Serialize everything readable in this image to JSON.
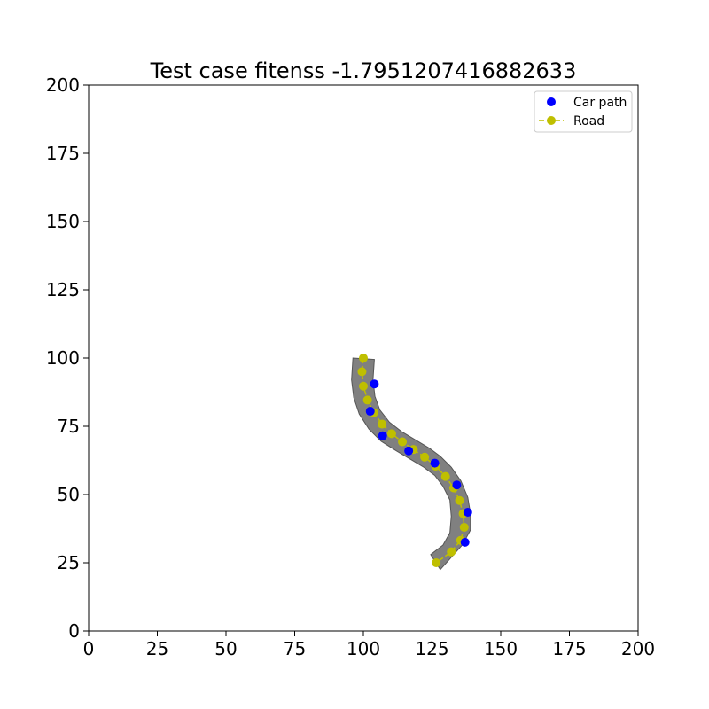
{
  "chart_data": {
    "type": "scatter",
    "title": "Test case fitenss -1.7951207416882633",
    "xlabel": "",
    "ylabel": "",
    "xlim": [
      0,
      200
    ],
    "ylim": [
      0,
      200
    ],
    "xticks": [
      0,
      25,
      50,
      75,
      100,
      125,
      150,
      175,
      200
    ],
    "yticks": [
      0,
      25,
      50,
      75,
      100,
      125,
      150,
      175,
      200
    ],
    "grid": false,
    "legend_position": "top-right",
    "legend": [
      {
        "label": "Car path",
        "color": "#0000ff",
        "marker": "circle"
      },
      {
        "label": "Road",
        "color": "#bfbf00",
        "marker": "circle-dashed-line"
      }
    ],
    "road_polygon": [
      [
        96.2,
        100.0
      ],
      [
        104.0,
        99.5
      ],
      [
        103.5,
        92.0
      ],
      [
        104.2,
        86.0
      ],
      [
        106.0,
        81.0
      ],
      [
        109.5,
        76.5
      ],
      [
        114.0,
        73.0
      ],
      [
        119.0,
        70.0
      ],
      [
        124.0,
        67.0
      ],
      [
        128.0,
        64.0
      ],
      [
        132.0,
        60.0
      ],
      [
        135.5,
        55.0
      ],
      [
        138.0,
        49.0
      ],
      [
        139.0,
        43.0
      ],
      [
        139.0,
        37.0
      ],
      [
        136.0,
        31.5
      ],
      [
        132.0,
        27.0
      ],
      [
        128.0,
        22.5
      ],
      [
        124.5,
        28.0
      ],
      [
        129.0,
        31.5
      ],
      [
        131.5,
        36.0
      ],
      [
        132.0,
        42.0
      ],
      [
        131.5,
        48.0
      ],
      [
        129.0,
        53.0
      ],
      [
        126.0,
        57.0
      ],
      [
        122.0,
        60.0
      ],
      [
        117.0,
        63.0
      ],
      [
        112.0,
        66.0
      ],
      [
        106.5,
        69.5
      ],
      [
        102.0,
        74.0
      ],
      [
        98.5,
        79.5
      ],
      [
        96.5,
        85.5
      ],
      [
        95.7,
        92.0
      ]
    ],
    "series": [
      {
        "name": "Car path",
        "color": "#0000ff",
        "points": [
          [
            104.0,
            90.5
          ],
          [
            102.5,
            80.5
          ],
          [
            107.0,
            71.5
          ],
          [
            116.5,
            66.0
          ],
          [
            126.0,
            61.5
          ],
          [
            134.0,
            53.5
          ],
          [
            138.0,
            43.5
          ],
          [
            137.0,
            32.5
          ]
        ]
      },
      {
        "name": "Road",
        "color": "#bfbf00",
        "points": [
          [
            100.0,
            100.0
          ],
          [
            99.5,
            95.0
          ],
          [
            100.0,
            89.7
          ],
          [
            101.5,
            84.6
          ],
          [
            103.8,
            80.0
          ],
          [
            106.8,
            75.8
          ],
          [
            110.3,
            72.3
          ],
          [
            114.2,
            69.3
          ],
          [
            118.2,
            66.5
          ],
          [
            122.3,
            63.7
          ],
          [
            126.3,
            60.4
          ],
          [
            129.9,
            56.6
          ],
          [
            132.9,
            52.4
          ],
          [
            135.0,
            47.8
          ],
          [
            136.3,
            43.0
          ],
          [
            136.7,
            38.0
          ],
          [
            135.4,
            33.2
          ],
          [
            132.0,
            29.0
          ],
          [
            126.5,
            25.0
          ]
        ]
      }
    ]
  }
}
